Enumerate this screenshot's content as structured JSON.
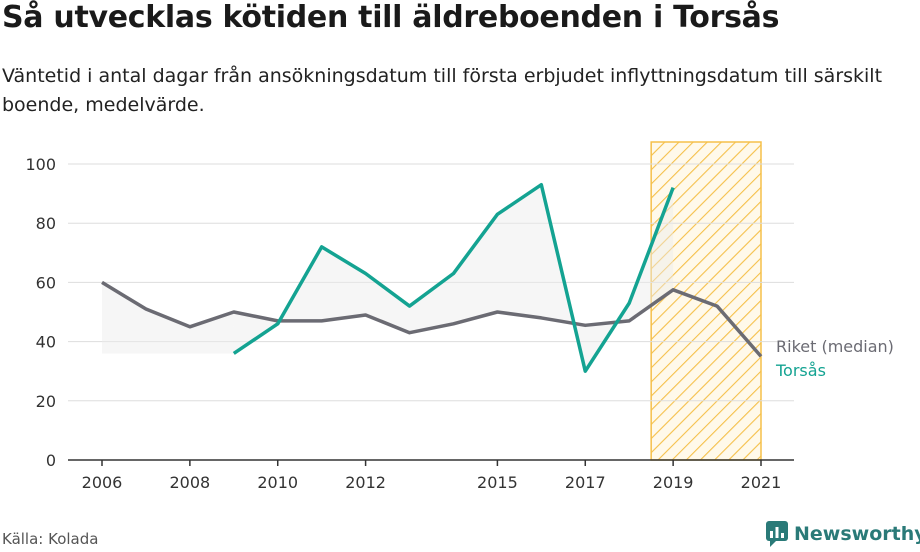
{
  "title": "Så utvecklas kötiden till äldreboenden i Torsås",
  "subtitle": "Väntetid i antal dagar från ansökningsdatum till första erbjudet inflyttningsdatum till särskilt boende, medelvärde.",
  "source": "Källa: Kolada",
  "brand": "Newsworthy",
  "colors": {
    "riket": "#6b6b73",
    "torsas": "#14a392",
    "highlight": "#f5c04a",
    "axis": "#333333",
    "grid": "#dddddd"
  },
  "chart_data": {
    "type": "line",
    "x_ticks": [
      2006,
      2008,
      2010,
      2012,
      2015,
      2017,
      2019,
      2021
    ],
    "xlim": [
      2006,
      2021
    ],
    "ylim": [
      0,
      100
    ],
    "y_ticks": [
      0,
      20,
      40,
      60,
      80,
      100
    ],
    "grid": "horizontal",
    "highlight_range": [
      2018.5,
      2021
    ],
    "series": [
      {
        "name": "Riket (median)",
        "color": "#6b6b73",
        "x": [
          2006,
          2007,
          2008,
          2009,
          2010,
          2011,
          2012,
          2013,
          2014,
          2015,
          2016,
          2017,
          2018,
          2019,
          2020,
          2021
        ],
        "y": [
          60,
          51,
          45,
          50,
          47,
          47,
          49,
          43,
          46,
          50,
          48,
          45.5,
          47,
          57.5,
          52,
          35
        ]
      },
      {
        "name": "Torsås",
        "color": "#14a392",
        "x": [
          2009,
          2010,
          2011,
          2012,
          2013,
          2014,
          2015,
          2016,
          2017,
          2018,
          2019
        ],
        "y": [
          36,
          46,
          72,
          63,
          52,
          63,
          83,
          93,
          30,
          53,
          92
        ]
      }
    ]
  }
}
